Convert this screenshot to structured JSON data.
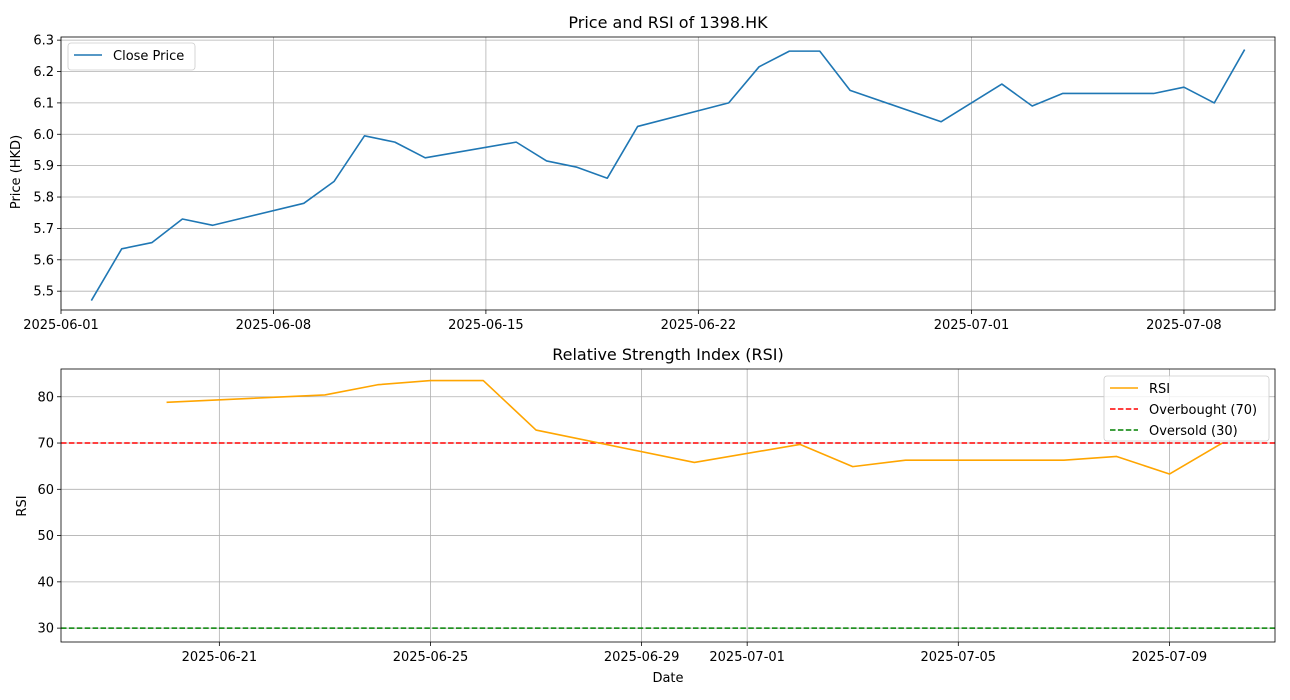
{
  "chart_data": [
    {
      "type": "line",
      "title": "Price and RSI of 1398.HK",
      "xlabel": "",
      "ylabel": "Price (HKD)",
      "x_range": [
        "2025-06-01",
        "2025-07-11"
      ],
      "ylim": [
        5.44,
        6.31
      ],
      "x_ticks": [
        "2025-06-01",
        "2025-06-08",
        "2025-06-15",
        "2025-06-22",
        "2025-07-01",
        "2025-07-08"
      ],
      "y_ticks": [
        5.5,
        5.6,
        5.7,
        5.8,
        5.9,
        6.0,
        6.1,
        6.2,
        6.3
      ],
      "grid": true,
      "legend_position": "upper-left",
      "series": [
        {
          "name": "Close Price",
          "color": "#1f77b4",
          "x": [
            "2025-06-02",
            "2025-06-03",
            "2025-06-04",
            "2025-06-05",
            "2025-06-06",
            "2025-06-09",
            "2025-06-10",
            "2025-06-11",
            "2025-06-12",
            "2025-06-13",
            "2025-06-16",
            "2025-06-17",
            "2025-06-18",
            "2025-06-19",
            "2025-06-20",
            "2025-06-23",
            "2025-06-24",
            "2025-06-25",
            "2025-06-26",
            "2025-06-27",
            "2025-06-30",
            "2025-07-02",
            "2025-07-03",
            "2025-07-04",
            "2025-07-07",
            "2025-07-08",
            "2025-07-09",
            "2025-07-10"
          ],
          "values": [
            5.47,
            5.635,
            5.655,
            5.73,
            5.71,
            5.78,
            5.85,
            5.995,
            5.975,
            5.925,
            5.975,
            5.915,
            5.895,
            5.86,
            6.025,
            6.1,
            6.215,
            6.265,
            6.265,
            6.14,
            6.04,
            6.16,
            6.09,
            6.13,
            6.13,
            6.15,
            6.1,
            6.27
          ]
        }
      ]
    },
    {
      "type": "line",
      "title": "Relative Strength Index (RSI)",
      "xlabel": "Date",
      "ylabel": "RSI",
      "x_range": [
        "2025-06-18",
        "2025-07-11"
      ],
      "ylim": [
        27,
        86
      ],
      "x_ticks": [
        "2025-06-21",
        "2025-06-25",
        "2025-06-29",
        "2025-07-01",
        "2025-07-05",
        "2025-07-09"
      ],
      "y_ticks": [
        30,
        40,
        50,
        60,
        70,
        80
      ],
      "grid": true,
      "legend_position": "upper-right",
      "series": [
        {
          "name": "RSI",
          "color": "#ffa500",
          "x": [
            "2025-06-20",
            "2025-06-23",
            "2025-06-24",
            "2025-06-25",
            "2025-06-26",
            "2025-06-27",
            "2025-06-30",
            "2025-07-02",
            "2025-07-03",
            "2025-07-04",
            "2025-07-07",
            "2025-07-08",
            "2025-07-09",
            "2025-07-10"
          ],
          "values": [
            78.8,
            80.4,
            82.6,
            83.5,
            83.5,
            72.8,
            65.8,
            69.7,
            64.9,
            66.3,
            66.3,
            67.1,
            63.3,
            70.0
          ]
        }
      ],
      "reference_lines": [
        {
          "name": "Overbought (70)",
          "value": 70,
          "color": "#ff0000",
          "style": "dashed"
        },
        {
          "name": "Oversold (30)",
          "value": 30,
          "color": "#008000",
          "style": "dashed"
        }
      ]
    }
  ]
}
